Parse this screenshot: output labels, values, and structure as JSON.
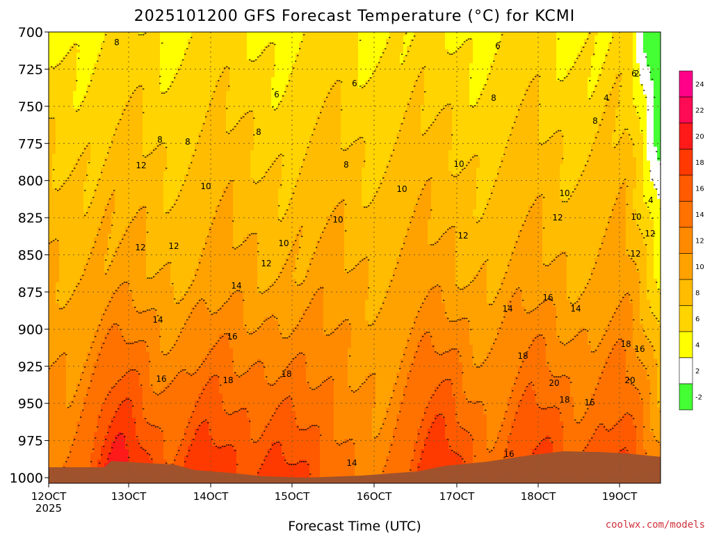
{
  "chart_data": {
    "type": "heatmap",
    "title": "2025101200 GFS Forecast Temperature (°C) for KCMI",
    "xlabel": "Forecast Time (UTC)",
    "ylabel": "",
    "credit": "coolwx.com/models",
    "y_ticks": [
      "700",
      "725",
      "750",
      "775",
      "800",
      "825",
      "850",
      "875",
      "900",
      "925",
      "950",
      "975",
      "1000"
    ],
    "y_values": [
      700,
      725,
      750,
      775,
      800,
      825,
      850,
      875,
      900,
      925,
      950,
      975,
      1000
    ],
    "ylim": [
      1000,
      700
    ],
    "x_ticks": [
      "12OCT",
      "13OCT",
      "14OCT",
      "15OCT",
      "16OCT",
      "17OCT",
      "18OCT",
      "19OCT"
    ],
    "x_year": "2025",
    "grid": true,
    "colorbar": {
      "position": "right",
      "labels": [
        "24",
        "22",
        "20",
        "18",
        "16",
        "14",
        "12",
        "10",
        "8",
        "6",
        "4",
        "2",
        "-2"
      ],
      "colors": [
        "#ff0088",
        "#ff0a55",
        "#ff1a1a",
        "#ff3a00",
        "#ff5a00",
        "#ff7200",
        "#ff8a00",
        "#ffa200",
        "#ffbc00",
        "#ffd400",
        "#ffff00",
        "#ffffff",
        "#44ff33"
      ],
      "boundaries": [
        26,
        24,
        22,
        20,
        18,
        16,
        14,
        12,
        10,
        8,
        6,
        4,
        2,
        0
      ]
    },
    "contour_labels": [
      {
        "text": "8"
      },
      {
        "text": "8"
      },
      {
        "text": "8"
      },
      {
        "text": "8"
      },
      {
        "text": "8"
      },
      {
        "text": "8"
      },
      {
        "text": "8"
      },
      {
        "text": "6"
      },
      {
        "text": "6"
      },
      {
        "text": "6"
      },
      {
        "text": "6"
      },
      {
        "text": "4"
      },
      {
        "text": "4"
      },
      {
        "text": "2"
      },
      {
        "text": "10"
      },
      {
        "text": "10"
      },
      {
        "text": "10"
      },
      {
        "text": "10"
      },
      {
        "text": "10"
      },
      {
        "text": "10"
      },
      {
        "text": "10"
      },
      {
        "text": "12"
      },
      {
        "text": "12"
      },
      {
        "text": "12"
      },
      {
        "text": "12"
      },
      {
        "text": "12"
      },
      {
        "text": "12"
      },
      {
        "text": "12"
      },
      {
        "text": "12"
      },
      {
        "text": "14"
      },
      {
        "text": "14"
      },
      {
        "text": "14"
      },
      {
        "text": "14"
      },
      {
        "text": "14"
      },
      {
        "text": "16"
      },
      {
        "text": "16"
      },
      {
        "text": "16"
      },
      {
        "text": "16"
      },
      {
        "text": "16"
      },
      {
        "text": "16"
      },
      {
        "text": "18"
      },
      {
        "text": "18"
      },
      {
        "text": "18"
      },
      {
        "text": "18"
      },
      {
        "text": "18"
      },
      {
        "text": "20"
      },
      {
        "text": "20"
      }
    ]
  }
}
